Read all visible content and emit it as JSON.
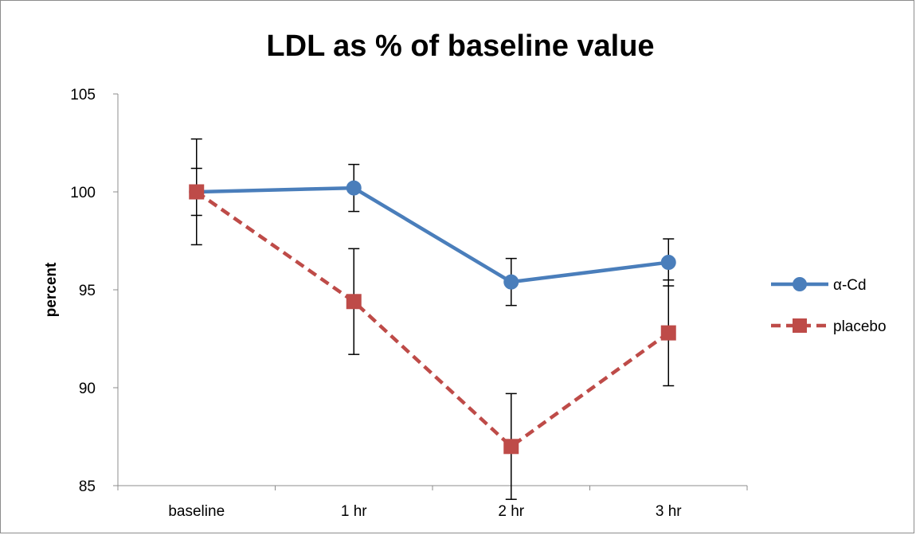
{
  "chart_data": {
    "type": "line",
    "title": "LDL as % of baseline value",
    "xlabel": "",
    "ylabel": "percent",
    "categories": [
      "baseline",
      "1 hr",
      "2 hr",
      "3 hr"
    ],
    "ylim": [
      85,
      105
    ],
    "yticks": [
      85,
      90,
      95,
      100,
      105
    ],
    "grid": false,
    "legend_position": "right",
    "series": [
      {
        "name": "α-Cd",
        "values": [
          100,
          100.2,
          95.4,
          96.4
        ],
        "error": [
          1.2,
          1.2,
          1.2,
          1.2
        ],
        "color": "#4a7ebb",
        "line_style": "solid",
        "marker": "circle"
      },
      {
        "name": "placebo",
        "values": [
          100,
          94.4,
          87.0,
          92.8
        ],
        "error": [
          2.7,
          2.7,
          2.7,
          2.7
        ],
        "color": "#be4b48",
        "line_style": "dashed",
        "marker": "square"
      }
    ]
  }
}
